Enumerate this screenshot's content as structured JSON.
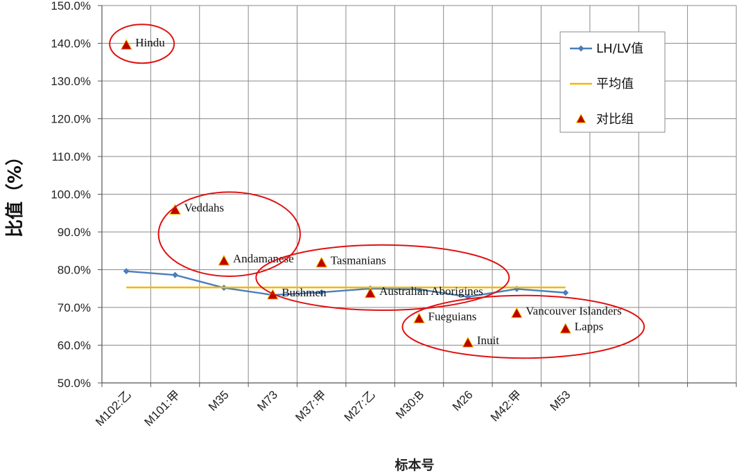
{
  "chart_data": {
    "type": "line",
    "xlabel": "标本号",
    "ylabel": "比值（%）",
    "ylim": [
      50,
      150
    ],
    "ytick_step": 10,
    "y_tick_format": "percent_1dp",
    "categories": [
      "M102:乙",
      "M101:甲",
      "M35",
      "M73",
      "M37:甲",
      "M27:乙",
      "M30:B",
      "M26",
      "M42:甲",
      "M53"
    ],
    "empty_slots_after": 3,
    "grid": true,
    "legend_position": "top-right",
    "series": [
      {
        "name": "LH/LV值",
        "kind": "line-diamond",
        "color": "#4a7ebb",
        "values": [
          79.6,
          78.6,
          75.2,
          73.3,
          74.0,
          75.0,
          74.8,
          72.8,
          74.9,
          73.9
        ]
      },
      {
        "name": "平均值",
        "kind": "line",
        "color": "#f2b800",
        "values": [
          75.3,
          75.3,
          75.3,
          75.3,
          75.3,
          75.3,
          75.3,
          75.3,
          75.3,
          75.3
        ]
      },
      {
        "name": "对比组",
        "kind": "triangle",
        "color": "#c00000",
        "points": [
          {
            "x": 0,
            "y": 139.5,
            "label": "Hindu"
          },
          {
            "x": 1,
            "y": 95.8,
            "label": "Veddahs"
          },
          {
            "x": 2,
            "y": 82.3,
            "label": "Andamanese"
          },
          {
            "x": 3,
            "y": 73.3,
            "label": "Bushmen"
          },
          {
            "x": 4,
            "y": 81.8,
            "label": "Tasmanians"
          },
          {
            "x": 5,
            "y": 73.7,
            "label": "Australian Aborigines"
          },
          {
            "x": 6,
            "y": 67.0,
            "label": "Fueguians"
          },
          {
            "x": 7,
            "y": 60.6,
            "label": "Inuit"
          },
          {
            "x": 8,
            "y": 68.4,
            "label": "Vancouver Islanders"
          },
          {
            "x": 9,
            "y": 64.3,
            "label": "Lapps"
          }
        ]
      }
    ],
    "annotations": [
      {
        "type": "ellipse",
        "color": "#e01010",
        "around": [
          "Hindu"
        ]
      },
      {
        "type": "ellipse",
        "color": "#e01010",
        "around": [
          "Veddahs",
          "Andamanese"
        ]
      },
      {
        "type": "ellipse",
        "color": "#e01010",
        "around": [
          "Tasmanians",
          "Bushmen",
          "Australian Aborigines"
        ]
      },
      {
        "type": "ellipse",
        "color": "#e01010",
        "around": [
          "Fueguians",
          "Inuit",
          "Vancouver Islanders",
          "Lapps"
        ]
      }
    ]
  }
}
